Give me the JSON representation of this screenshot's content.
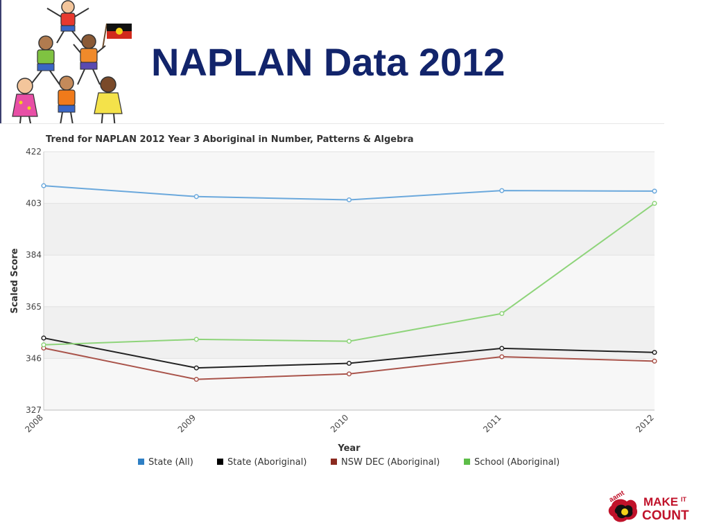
{
  "slide": {
    "title": "NAPLAN Data 2012"
  },
  "logo": {
    "org_text": "aamt",
    "line1": "MAKE",
    "line1_small": "IT",
    "line2": "COUNT"
  },
  "chart_data": {
    "type": "line",
    "title": "Trend for NAPLAN 2012 Year 3 Aboriginal in Number, Patterns & Algebra",
    "xlabel": "Year",
    "ylabel": "Scaled Score",
    "x": [
      "2008",
      "2009",
      "2010",
      "2011",
      "2012"
    ],
    "ylim": [
      327,
      422
    ],
    "yticks": [
      "327",
      "346",
      "365",
      "384",
      "403",
      "422"
    ],
    "grid": "alternating horizontal bands",
    "legend": "bottom-center",
    "series": [
      {
        "name": "State (All)",
        "color": "#6aa8dc",
        "legend_color": "#2e7fc4",
        "values": [
          409.5,
          405.5,
          404.3,
          407.7,
          407.5
        ]
      },
      {
        "name": "State (Aboriginal)",
        "color": "#222222",
        "legend_color": "#000000",
        "values": [
          353.5,
          342.5,
          344.2,
          349.7,
          348.2
        ]
      },
      {
        "name": "NSW DEC (Aboriginal)",
        "color": "#a9534a",
        "legend_color": "#8b2a1f",
        "values": [
          349.8,
          338.3,
          340.3,
          346.6,
          345.0
        ]
      },
      {
        "name": "School (Aboriginal)",
        "color": "#8ed47a",
        "legend_color": "#5dbd48",
        "values": [
          351.0,
          353.0,
          352.3,
          362.5,
          403.0
        ]
      }
    ]
  }
}
